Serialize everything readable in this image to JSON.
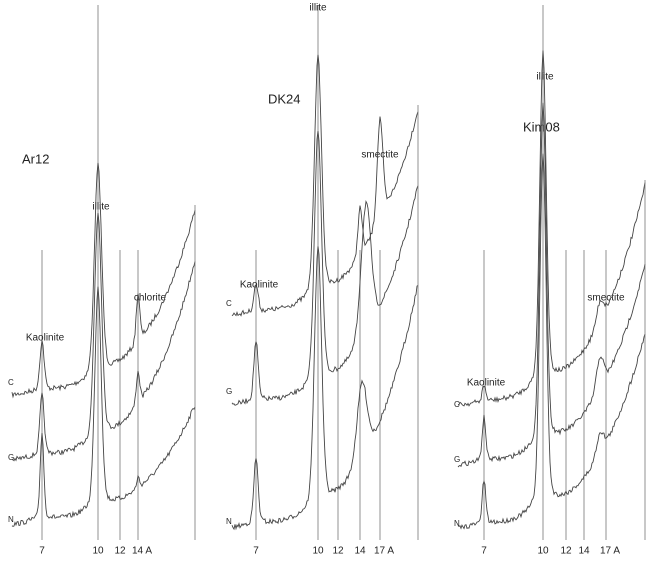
{
  "panels": [
    {
      "title": "Ar12",
      "peaks": [
        "Kaolinite",
        "illite",
        "chlorite"
      ],
      "curves": [
        "C",
        "G",
        "N"
      ],
      "ticks": [
        "7",
        "10",
        "12",
        "14 A"
      ]
    },
    {
      "title": "DK24",
      "peaks": [
        "Kaolinite",
        "illite",
        "smectite"
      ],
      "curves": [
        "C",
        "G",
        "N"
      ],
      "ticks": [
        "7",
        "10",
        "12",
        "14",
        "17 A"
      ]
    },
    {
      "title": "Kim08",
      "peaks": [
        "Kaolinite",
        "illite",
        "smectite"
      ],
      "curves": [
        "C",
        "G",
        "N"
      ],
      "ticks": [
        "7",
        "10",
        "12",
        "14",
        "17 A"
      ]
    }
  ]
}
